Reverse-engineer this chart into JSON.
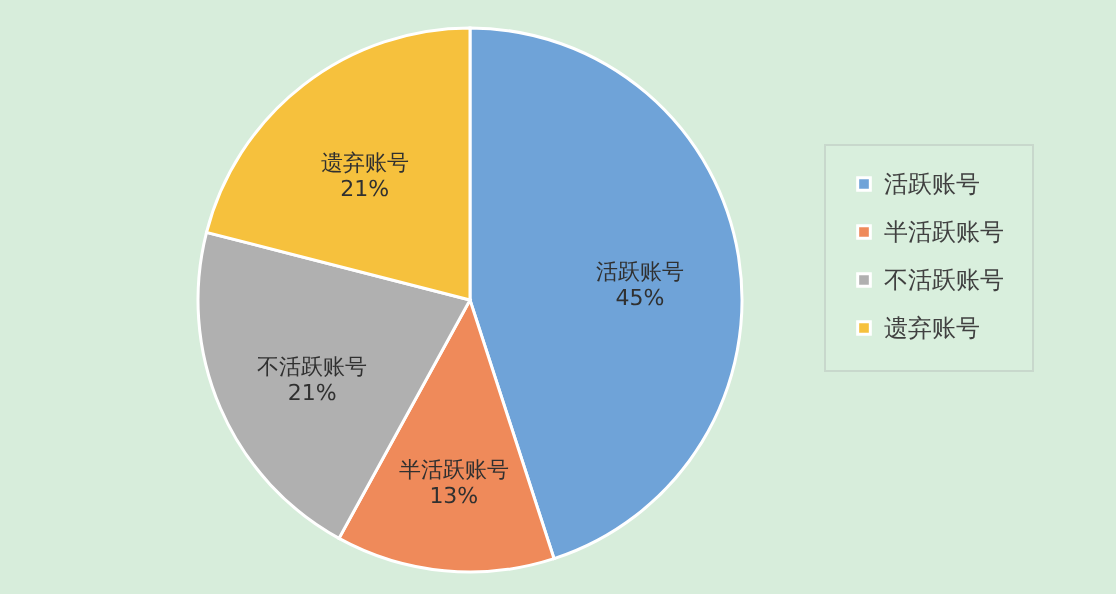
{
  "chart_data": {
    "type": "pie",
    "categories": [
      "活跃账号",
      "半活跃账号",
      "不活跃账号",
      "遗弃账号"
    ],
    "values": [
      45,
      13,
      21,
      21
    ],
    "value_labels": [
      "45%",
      "13%",
      "21%",
      "21%"
    ],
    "colors": [
      "#6fa3d8",
      "#ef8a5a",
      "#b0b0b0",
      "#f6c13d"
    ],
    "legend": "right"
  }
}
